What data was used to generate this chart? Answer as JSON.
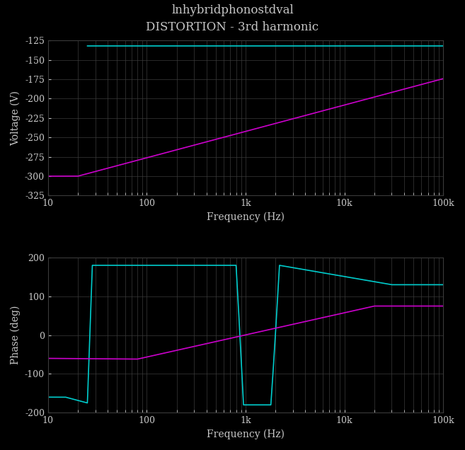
{
  "title_line1": "lnhybridphonostdval",
  "title_line2": "DISTORTION - 3rd harmonic",
  "background_color": "#000000",
  "grid_color": "#3a3a3a",
  "text_color": "#c8c8c8",
  "cyan_color": "#00cccc",
  "magenta_color": "#cc00cc",
  "subplot1": {
    "ylabel": "Voltage (V)",
    "xlabel": "Frequency (Hz)",
    "ylim": [
      -325,
      -125
    ],
    "yticks": [
      -325,
      -300,
      -275,
      -250,
      -225,
      -200,
      -175,
      -150,
      -125
    ],
    "xlim": [
      10,
      100000
    ]
  },
  "subplot2": {
    "ylabel": "Phase (deg)",
    "xlabel": "Frequency (Hz)",
    "ylim": [
      -200,
      200
    ],
    "yticks": [
      -200,
      -100,
      0,
      100,
      200
    ],
    "xlim": [
      10,
      100000
    ]
  }
}
